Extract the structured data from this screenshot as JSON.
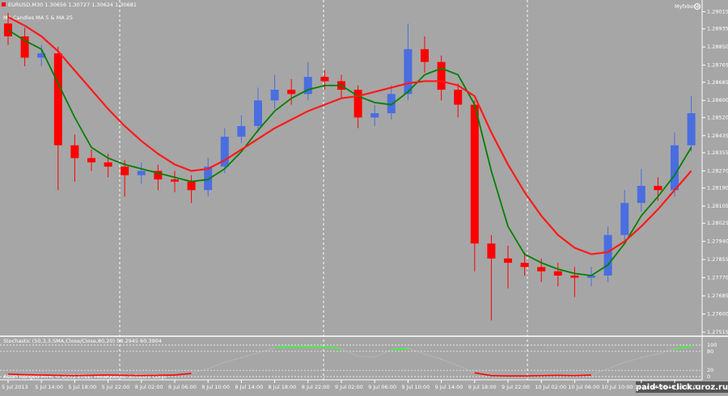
{
  "brand": "Myfxbook",
  "watermark": "paid-to-click.uroz.ru",
  "chart_data": [
    {
      "type": "candlestick",
      "title": "EURUSD,M30  1.30656 1.30727 1.30624 1.30681",
      "subtitle": "MA Candles MA 5 & MA 25",
      "up_color": "#4a6ee0",
      "down_color": "#ff0000",
      "categories": [
        "5 Jul 2013",
        null,
        "5 Jul 14:00",
        null,
        "5 Jul 18:00",
        null,
        "5 Jul 22:00",
        null,
        "8 Jul 02:00",
        null,
        "8 Jul 06:00",
        null,
        "8 Jul 10:00",
        null,
        "8 Jul 14:00",
        null,
        "8 Jul 18:00",
        null,
        "8 Jul 22:00",
        null,
        "9 Jul 02:00",
        null,
        "9 Jul 06:00",
        null,
        "9 Jul 10:00",
        null,
        "9 Jul 14:00",
        null,
        "9 Jul 18:00",
        null,
        "9 Jul 22:00",
        null,
        "10 Jul 02:00",
        null,
        "10 Jul 06:00",
        null,
        "10 Jul 10:00",
        null,
        "10 Jul 14:00",
        null,
        "10 Jul 18:00",
        null
      ],
      "open": [
        1.2896,
        1.289,
        1.288,
        1.2882,
        1.2839,
        1.2833,
        1.2831,
        1.2829,
        1.2825,
        1.2827,
        1.2823,
        1.2822,
        1.2818,
        1.2829,
        1.2843,
        1.2848,
        1.286,
        1.2865,
        1.2863,
        1.2871,
        1.2869,
        1.2865,
        1.2852,
        1.2854,
        1.2863,
        1.2884,
        1.2878,
        1.2865,
        1.2858,
        1.2793,
        1.2786,
        1.2784,
        1.2782,
        1.278,
        1.2778,
        1.2777,
        1.2778,
        1.2797,
        1.2812,
        1.282,
        1.2818,
        1.2839
      ],
      "high": [
        1.2901,
        1.2894,
        1.2886,
        1.2885,
        1.2844,
        1.2837,
        1.2835,
        1.2832,
        1.2831,
        1.283,
        1.2827,
        1.2825,
        1.2833,
        1.2847,
        1.2853,
        1.2866,
        1.2872,
        1.287,
        1.2878,
        1.2874,
        1.2872,
        1.2867,
        1.2858,
        1.2867,
        1.2896,
        1.289,
        1.2881,
        1.2868,
        1.286,
        1.2797,
        1.2792,
        1.2789,
        1.2786,
        1.2784,
        1.2782,
        1.2782,
        1.2801,
        1.2818,
        1.2828,
        1.2824,
        1.2845,
        1.2862
      ],
      "low": [
        1.2886,
        1.2876,
        1.2876,
        1.2818,
        1.2822,
        1.2827,
        1.2824,
        1.2815,
        1.2821,
        1.2818,
        1.2817,
        1.2812,
        1.2815,
        1.2826,
        1.284,
        1.2845,
        1.2856,
        1.2858,
        1.286,
        1.2865,
        1.2861,
        1.2847,
        1.2848,
        1.2851,
        1.286,
        1.2873,
        1.286,
        1.2852,
        1.278,
        1.2757,
        1.2772,
        1.2778,
        1.2775,
        1.2773,
        1.2768,
        1.2773,
        1.2775,
        1.2794,
        1.2808,
        1.2813,
        1.2815,
        1.2836
      ],
      "close": [
        1.289,
        1.288,
        1.2882,
        1.2839,
        1.2833,
        1.2831,
        1.2829,
        1.2825,
        1.2827,
        1.2823,
        1.2822,
        1.2818,
        1.2829,
        1.2843,
        1.2848,
        1.286,
        1.2865,
        1.2863,
        1.2871,
        1.2869,
        1.2865,
        1.2852,
        1.2854,
        1.2863,
        1.2884,
        1.2878,
        1.2865,
        1.2858,
        1.2793,
        1.2786,
        1.2784,
        1.2782,
        1.278,
        1.2778,
        1.2777,
        1.2778,
        1.2797,
        1.2812,
        1.282,
        1.2818,
        1.2839,
        1.2854
      ],
      "series": [
        {
          "name": "MA 5",
          "color": "#008000",
          "values": [
            1.2893,
            1.2888,
            1.2884,
            1.2868,
            1.2852,
            1.2838,
            1.2833,
            1.283,
            1.2828,
            1.2826,
            1.2824,
            1.2822,
            1.2823,
            1.2828,
            1.2836,
            1.2846,
            1.2855,
            1.2861,
            1.2865,
            1.2867,
            1.2867,
            1.2862,
            1.2859,
            1.2858,
            1.2864,
            1.2872,
            1.2875,
            1.2872,
            1.2858,
            1.2827,
            1.2801,
            1.2788,
            1.2784,
            1.2781,
            1.2779,
            1.2778,
            1.2783,
            1.2793,
            1.2806,
            1.2815,
            1.2825,
            1.2838
          ]
        },
        {
          "name": "MA 25",
          "color": "#ff1a1a",
          "values": [
            1.2899,
            1.2895,
            1.289,
            1.2883,
            1.2874,
            1.2865,
            1.2856,
            1.2848,
            1.2841,
            1.2835,
            1.283,
            1.2827,
            1.2828,
            1.2832,
            1.2837,
            1.2842,
            1.2847,
            1.2851,
            1.2855,
            1.2858,
            1.2861,
            1.2862,
            1.2864,
            1.2866,
            1.2868,
            1.2869,
            1.2869,
            1.2867,
            1.2862,
            1.2845,
            1.283,
            1.2817,
            1.2806,
            1.2797,
            1.2791,
            1.2788,
            1.2789,
            1.2794,
            1.2801,
            1.2809,
            1.2818,
            1.2827
          ]
        }
      ],
      "ylim": [
        1.275,
        1.2907
      ],
      "yticks": [
        1.29015,
        1.28935,
        {
          "value": 1.2885,
          "label": "1.28850"
        },
        1.28765,
        1.28685,
        {
          "value": 1.286,
          "label": "1.28600"
        },
        {
          "value": 1.2852,
          "label": "1.28520"
        },
        1.28435,
        1.28355,
        {
          "value": 1.2827,
          "label": "1.28270"
        },
        {
          "value": 1.2819,
          "label": "1.28190"
        },
        1.28105,
        1.28025,
        {
          "value": 1.2794,
          "label": "1.27940"
        },
        1.27855,
        {
          "value": 1.2777,
          "label": "1.27770"
        },
        1.27685,
        {
          "value": 1.276,
          "label": "1.27600"
        },
        1.27515
      ]
    },
    {
      "type": "line",
      "title": "Stochastic (50,3,3,SMA,Close/Close,80,20) 58.2945 60.3904",
      "subtitle": "Asian Ranged MT4, © 2001-2012, MetaQuotes Software Corp.",
      "series": [
        {
          "name": "Stochastic",
          "color": "#c8c8c8",
          "overbought_color": "#33ff33",
          "oversold_color": "#ff0000",
          "values": [
            8,
            6,
            5,
            4,
            3,
            4,
            5,
            4,
            3,
            4,
            5,
            10,
            25,
            45,
            60,
            75,
            92,
            95,
            96,
            94,
            88,
            65,
            62,
            85,
            90,
            72,
            55,
            35,
            12,
            3,
            2,
            2,
            3,
            4,
            3,
            5,
            25,
            45,
            60,
            72,
            88,
            96
          ]
        }
      ],
      "ylim": [
        0,
        100
      ],
      "yticks": [
        0,
        20,
        80,
        100
      ],
      "levels": [
        20,
        80
      ],
      "grid": true
    }
  ]
}
